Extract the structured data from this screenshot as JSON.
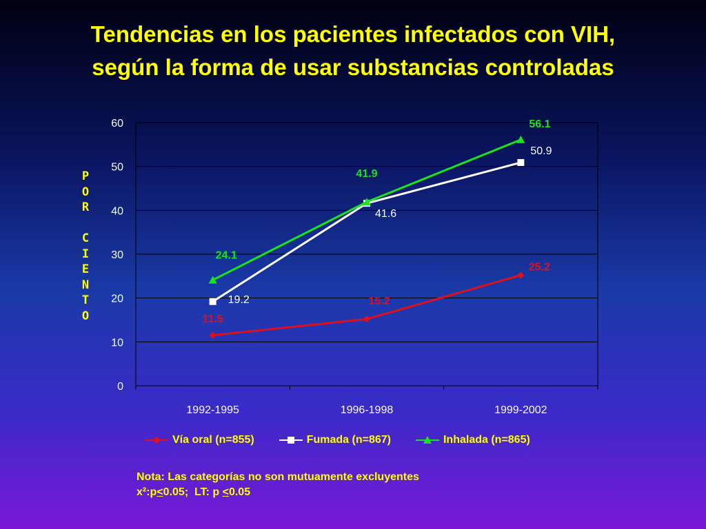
{
  "slide": {
    "title_line1": "Tendencias en los pacientes infectados con VIH,",
    "title_line2": "según la forma de usar substancias controladas",
    "note_line1": "Nota: Las categorías no son mutuamente excluyentes",
    "note_line2_prefix": "x²:p",
    "note_line2_lt1": "<",
    "note_line2_mid": "0.05;  LT: p ",
    "note_line2_lt2": "<",
    "note_line2_suffix": "0.05"
  },
  "colors": {
    "title": "#ffff00",
    "axis_text": "#ffffff",
    "oral": "#e0101a",
    "fumada": "#ffffff",
    "inhalada": "#19e619"
  },
  "chart_data": {
    "type": "line",
    "title": "",
    "xlabel": "",
    "ylabel": "P\nO\nR\n\nC\nI\nE\nN\nT\nO",
    "categories": [
      "1992-1995",
      "1996-1998",
      "1999-2002"
    ],
    "ylim": [
      0,
      60
    ],
    "yticks": [
      "0",
      "10",
      "20",
      "30",
      "40",
      "50",
      "60"
    ],
    "grid": true,
    "legend_position": "bottom",
    "series": [
      {
        "name": "Vía oral (n=855)",
        "values": [
          11.5,
          15.2,
          25.2
        ],
        "labels": [
          "11.5",
          "15.2",
          "25.2"
        ],
        "color": "#e0101a",
        "marker": "diamond"
      },
      {
        "name": "Fumada (n=867)",
        "values": [
          19.2,
          41.6,
          50.9
        ],
        "labels": [
          "19.2",
          "41.6",
          "50.9"
        ],
        "color": "#ffffff",
        "marker": "square"
      },
      {
        "name": "Inhalada (n=865)",
        "values": [
          24.1,
          41.9,
          56.1
        ],
        "labels": [
          "24.1",
          "41.9",
          "56.1"
        ],
        "color": "#19e619",
        "marker": "triangle"
      }
    ]
  }
}
